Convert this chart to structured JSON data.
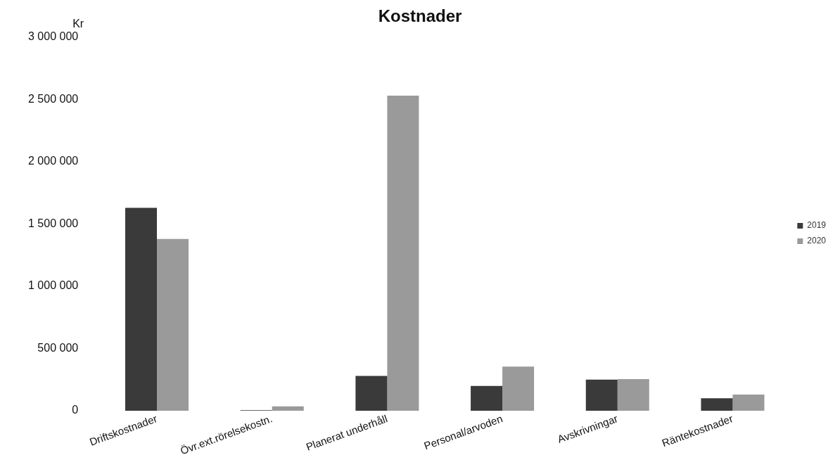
{
  "chart_data": {
    "type": "bar",
    "title": "Kostnader",
    "ylabel": "Kr",
    "categories": [
      "Driftskostnader",
      "Övr.ext.rörelsekostn.",
      "Planerat underhåll",
      "Personal/arvoden",
      "Avskrivningar",
      "Räntekostnader"
    ],
    "series": [
      {
        "name": "2019",
        "color": "#3a3a3a",
        "values": [
          1630000,
          5000,
          280000,
          200000,
          250000,
          100000
        ]
      },
      {
        "name": "2020",
        "color": "#9a9a9a",
        "values": [
          1380000,
          35000,
          2530000,
          355000,
          255000,
          130000
        ]
      }
    ],
    "ylim": [
      0,
      3000000
    ],
    "yticks": [
      {
        "value": 0,
        "label": "0"
      },
      {
        "value": 500000,
        "label": "500 000"
      },
      {
        "value": 1000000,
        "label": "1 000 000"
      },
      {
        "value": 1500000,
        "label": "1 500 000"
      },
      {
        "value": 2000000,
        "label": "2 000 000"
      },
      {
        "value": 2500000,
        "label": "2 500 000"
      },
      {
        "value": 3000000,
        "label": "3 000 000"
      }
    ],
    "grid": false,
    "legend": "right"
  }
}
